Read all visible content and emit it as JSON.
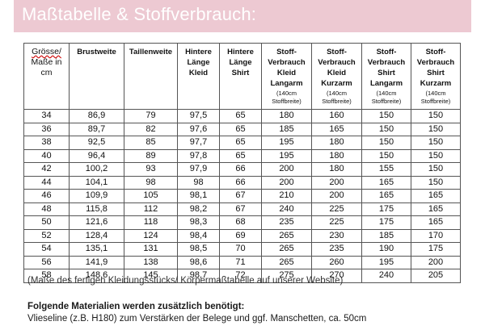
{
  "banner": {
    "title": "Maßtabelle & Stoffverbrauch:"
  },
  "table": {
    "headers": [
      {
        "lines": [
          "Grösse/",
          "Maße in",
          "cm"
        ]
      },
      {
        "lines": [
          "Brustweite"
        ]
      },
      {
        "lines": [
          "Taillenweite"
        ]
      },
      {
        "lines": [
          "Hintere",
          "Länge",
          "Kleid"
        ]
      },
      {
        "lines": [
          "Hintere",
          "Länge",
          "Shirt"
        ]
      },
      {
        "lines": [
          "Stoff-",
          "Verbrauch",
          "Kleid",
          "Langarm"
        ],
        "note": [
          "(140cm",
          "Stoffbreite)"
        ]
      },
      {
        "lines": [
          "Stoff-",
          "Verbrauch",
          "Kleid",
          "Kurzarm"
        ],
        "note": [
          "(140cm",
          "Stoffbreite)"
        ]
      },
      {
        "lines": [
          "Stoff-",
          "Verbrauch",
          "Shirt",
          "Langarm"
        ],
        "note": [
          "(140cm",
          "Stoffbreite)"
        ]
      },
      {
        "lines": [
          "Stoff-",
          "Verbrauch",
          "Shirt",
          "Kurzarm"
        ],
        "note": [
          "(140cm",
          "Stoffbreite)"
        ]
      }
    ],
    "rows": [
      [
        "34",
        "86,9",
        "79",
        "97,5",
        "65",
        "180",
        "160",
        "150",
        "150"
      ],
      [
        "36",
        "89,7",
        "82",
        "97,6",
        "65",
        "185",
        "165",
        "150",
        "150"
      ],
      [
        "38",
        "92,5",
        "85",
        "97,7",
        "65",
        "195",
        "180",
        "150",
        "150"
      ],
      [
        "40",
        "96,4",
        "89",
        "97,8",
        "65",
        "195",
        "180",
        "150",
        "150"
      ],
      [
        "42",
        "100,2",
        "93",
        "97,9",
        "66",
        "200",
        "180",
        "155",
        "150"
      ],
      [
        "44",
        "104,1",
        "98",
        "98",
        "66",
        "200",
        "200",
        "165",
        "150"
      ],
      [
        "46",
        "109,9",
        "105",
        "98,1",
        "67",
        "210",
        "200",
        "165",
        "165"
      ],
      [
        "48",
        "115,8",
        "112",
        "98,2",
        "67",
        "240",
        "225",
        "175",
        "165"
      ],
      [
        "50",
        "121,6",
        "118",
        "98,3",
        "68",
        "235",
        "225",
        "175",
        "165"
      ],
      [
        "52",
        "128,4",
        "124",
        "98,4",
        "69",
        "265",
        "230",
        "185",
        "170"
      ],
      [
        "54",
        "135,1",
        "131",
        "98,5",
        "70",
        "265",
        "235",
        "190",
        "175"
      ],
      [
        "56",
        "141,9",
        "138",
        "98,6",
        "71",
        "265",
        "260",
        "195",
        "200"
      ],
      [
        "58",
        "148,6",
        "145",
        "98,7",
        "72",
        "275",
        "270",
        "240",
        "205"
      ]
    ]
  },
  "footnote": "(Maße des fertigen Kleidungsstücks/ Körpermaßtabelle auf unserer Website)",
  "materials": {
    "heading": "Folgende Materialien werden zusätzlich benötigt:",
    "line": "Vlieseline (z.B. H180) zum Verstärken der Belege und ggf. Manschetten, ca. 50cm"
  }
}
